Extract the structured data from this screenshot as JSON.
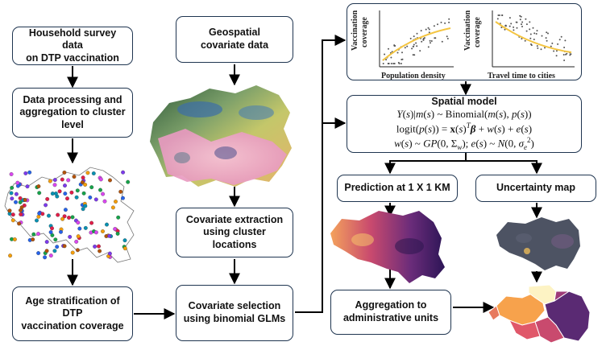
{
  "boxes": {
    "household_survey": "Household survey data\non DTP vaccination",
    "data_processing": "Data processing and\naggregation to cluster\nlevel",
    "geospatial": "Geospatial\ncovariate data",
    "age_stratification": "Age stratification of DTP\nvaccination coverage",
    "covariate_extraction": "Covariate extraction\nusing cluster locations",
    "covariate_selection": "Covariate selection\nusing binomial GLMs",
    "prediction": "Prediction at 1 X 1 KM",
    "uncertainty": "Uncertainty map",
    "aggregation": "Aggregation to\nadministrative units"
  },
  "plots": {
    "left": {
      "ylabel_line1": "Vaccination",
      "ylabel_line2": "coverage",
      "xlabel": "Population density",
      "trend": "increasing"
    },
    "right": {
      "ylabel_line1": "Vaccination",
      "ylabel_line2": "coverage",
      "xlabel": "Travel time to cities",
      "trend": "decreasing"
    }
  },
  "spatial_model": {
    "title": "Spatial model"
  },
  "colors": {
    "box_border": "#1f3550",
    "arrow": "#000000",
    "trend_line": "#f4c542",
    "scatter_points": "#555555"
  }
}
